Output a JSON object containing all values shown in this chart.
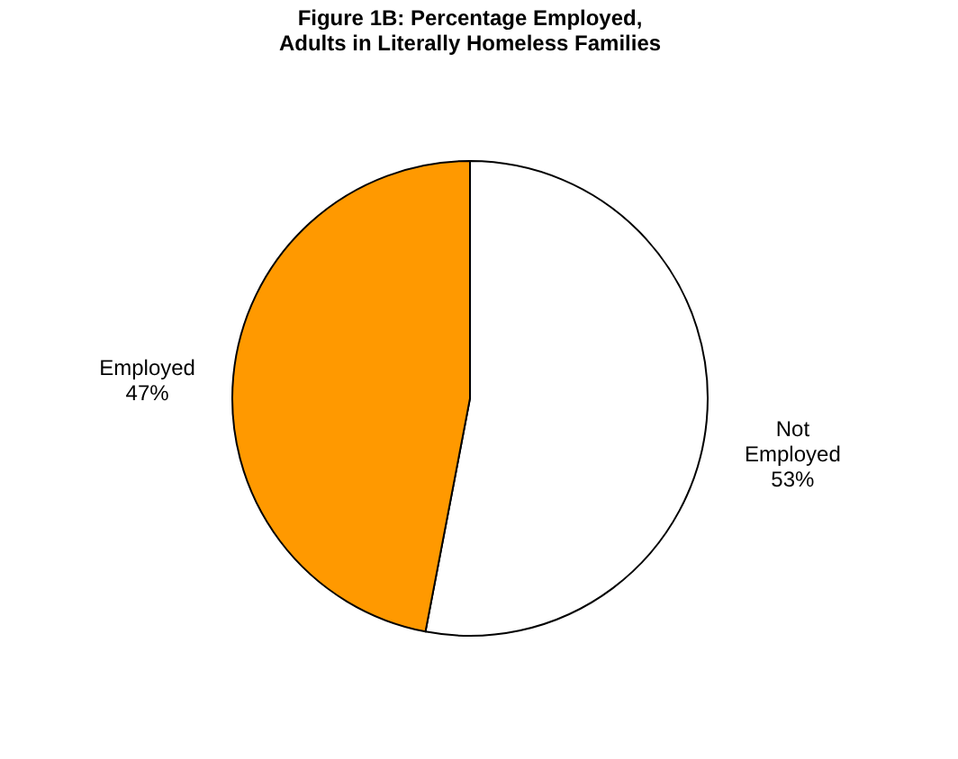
{
  "chart_data": {
    "type": "pie",
    "title": "Figure 1B: Percentage Employed,\nAdults in Literally Homeless Families",
    "categories": [
      "Not Employed",
      "Employed"
    ],
    "values": [
      53,
      47
    ],
    "value_labels": [
      "53%",
      "47%"
    ],
    "colors": [
      "#ffffff",
      "#ff9900"
    ]
  }
}
